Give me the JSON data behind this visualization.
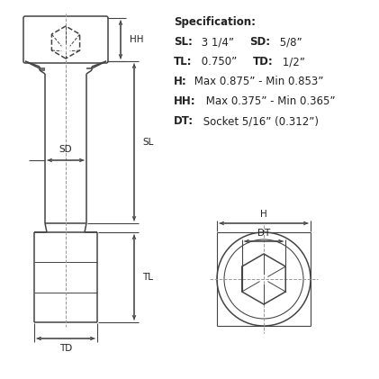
{
  "background_color": "#ffffff",
  "line_color": "#444444",
  "dim_color": "#444444",
  "text_color": "#222222",
  "figsize": [
    4.21,
    4.21
  ],
  "dpi": 100,
  "spec_title": "Specification:",
  "spec": [
    [
      [
        "SL:",
        true
      ],
      [
        " 3 1/4” ",
        false
      ],
      [
        "SD:",
        true
      ],
      [
        " 5/8”",
        false
      ]
    ],
    [
      [
        "TL:",
        true
      ],
      [
        " 0.750” ",
        false
      ],
      [
        "TD:",
        true
      ],
      [
        " 1/2”",
        false
      ]
    ],
    [
      [
        "H:",
        true
      ],
      [
        " Max 0.875” - Min 0.853”",
        false
      ]
    ],
    [
      [
        "HH:",
        true
      ],
      [
        " Max 0.375” - Min 0.365”",
        false
      ]
    ],
    [
      [
        "DT:",
        true
      ],
      [
        " Socket 5/16” (0.312”)",
        false
      ]
    ]
  ]
}
